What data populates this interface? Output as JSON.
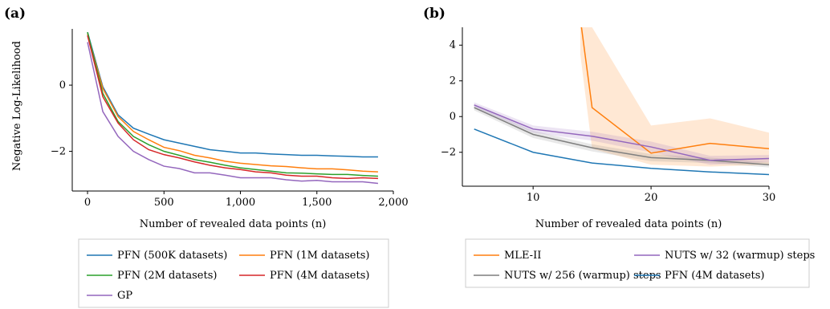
{
  "chart_data": [
    {
      "type": "line",
      "panel_label": "(a)",
      "xlabel": "Number of revealed data points (n)",
      "ylabel": "Negative Log-Likelihood",
      "xlim": [
        -100,
        2000
      ],
      "ylim": [
        -3.2,
        1.7
      ],
      "xticks": [
        0,
        500,
        1000,
        1500,
        2000
      ],
      "xtick_labels": [
        "0",
        "500",
        "1,000",
        "1,500",
        "2,000"
      ],
      "yticks": [
        0,
        -2
      ],
      "ytick_labels": [
        "0",
        "−2"
      ],
      "legend_position": "bottom",
      "series": [
        {
          "name": "PFN (500K datasets)",
          "color": "#1f77b4",
          "x": [
            0,
            100,
            200,
            300,
            400,
            500,
            600,
            700,
            800,
            900,
            1000,
            1100,
            1200,
            1300,
            1400,
            1500,
            1600,
            1700,
            1800,
            1900
          ],
          "y": [
            1.6,
            -0.05,
            -0.9,
            -1.3,
            -1.48,
            -1.65,
            -1.75,
            -1.85,
            -1.95,
            -2.0,
            -2.05,
            -2.05,
            -2.08,
            -2.1,
            -2.12,
            -2.12,
            -2.14,
            -2.15,
            -2.17,
            -2.17
          ]
        },
        {
          "name": "PFN (1M datasets)",
          "color": "#ff7f0e",
          "x": [
            0,
            100,
            200,
            300,
            400,
            500,
            600,
            700,
            800,
            900,
            1000,
            1100,
            1200,
            1300,
            1400,
            1500,
            1600,
            1700,
            1800,
            1900
          ],
          "y": [
            1.55,
            -0.1,
            -0.95,
            -1.4,
            -1.65,
            -1.88,
            -1.98,
            -2.12,
            -2.2,
            -2.3,
            -2.36,
            -2.4,
            -2.44,
            -2.46,
            -2.5,
            -2.53,
            -2.53,
            -2.56,
            -2.6,
            -2.62
          ]
        },
        {
          "name": "PFN (2M datasets)",
          "color": "#2ca02c",
          "x": [
            0,
            100,
            200,
            300,
            400,
            500,
            600,
            700,
            800,
            900,
            1000,
            1100,
            1200,
            1300,
            1400,
            1500,
            1600,
            1700,
            1800,
            1900
          ],
          "y": [
            1.6,
            -0.25,
            -1.1,
            -1.55,
            -1.8,
            -2.0,
            -2.12,
            -2.25,
            -2.33,
            -2.42,
            -2.5,
            -2.55,
            -2.6,
            -2.65,
            -2.66,
            -2.68,
            -2.7,
            -2.7,
            -2.73,
            -2.75
          ]
        },
        {
          "name": "PFN (4M datasets)",
          "color": "#d62728",
          "x": [
            0,
            100,
            200,
            300,
            400,
            500,
            600,
            700,
            800,
            900,
            1000,
            1100,
            1200,
            1300,
            1400,
            1500,
            1600,
            1700,
            1800,
            1900
          ],
          "y": [
            1.5,
            -0.35,
            -1.15,
            -1.65,
            -1.95,
            -2.1,
            -2.2,
            -2.32,
            -2.42,
            -2.5,
            -2.55,
            -2.62,
            -2.65,
            -2.72,
            -2.75,
            -2.75,
            -2.8,
            -2.82,
            -2.8,
            -2.82
          ]
        },
        {
          "name": "GP",
          "color": "#9467bd",
          "x": [
            0,
            100,
            200,
            300,
            400,
            500,
            600,
            700,
            800,
            900,
            1000,
            1100,
            1200,
            1300,
            1400,
            1500,
            1600,
            1700,
            1800,
            1900
          ],
          "y": [
            1.3,
            -0.8,
            -1.55,
            -2.0,
            -2.25,
            -2.45,
            -2.52,
            -2.65,
            -2.65,
            -2.72,
            -2.8,
            -2.8,
            -2.8,
            -2.86,
            -2.9,
            -2.88,
            -2.92,
            -2.92,
            -2.92,
            -2.97
          ]
        }
      ]
    },
    {
      "type": "line",
      "panel_label": "(b)",
      "xlabel": "Number of revealed data points (n)",
      "ylabel": "",
      "xlim": [
        4,
        30
      ],
      "ylim": [
        -3.9,
        5
      ],
      "xticks": [
        10,
        20,
        30
      ],
      "xtick_labels": [
        "10",
        "20",
        "30"
      ],
      "yticks": [
        4,
        2,
        0,
        -2
      ],
      "ytick_labels": [
        "4",
        "2",
        "0",
        "−2"
      ],
      "legend_position": "bottom",
      "series": [
        {
          "name": "MLE-II",
          "color": "#ff7f0e",
          "x": [
            5,
            10,
            14,
            15,
            20,
            25,
            30
          ],
          "y": [
            null,
            null,
            5.5,
            0.5,
            -2.05,
            -1.5,
            -1.8
          ],
          "band_upper": [
            null,
            null,
            7,
            5,
            -0.5,
            -0.1,
            -0.9
          ],
          "band_lower": [
            null,
            null,
            3.5,
            -1.8,
            -2.7,
            -2.8,
            -2.7
          ]
        },
        {
          "name": "NUTS w/ 256 (warmup) steps",
          "color": "#7f7f7f",
          "x": [
            5,
            10,
            15,
            20,
            25,
            30
          ],
          "y": [
            0.5,
            -1.0,
            -1.75,
            -2.3,
            -2.45,
            -2.7
          ],
          "band_upper": [
            0.65,
            -0.8,
            -1.55,
            -2.1,
            -2.3,
            -2.55
          ],
          "band_lower": [
            0.35,
            -1.2,
            -1.95,
            -2.5,
            -2.6,
            -2.85
          ]
        },
        {
          "name": "NUTS w/ 32 (warmup) steps",
          "color": "#9467bd",
          "x": [
            5,
            10,
            15,
            20,
            25,
            30
          ],
          "y": [
            0.65,
            -0.7,
            -1.1,
            -1.7,
            -2.45,
            -2.35
          ],
          "band_upper": [
            0.8,
            -0.5,
            -0.85,
            -1.4,
            -2.2,
            -2.15
          ],
          "band_lower": [
            0.5,
            -0.9,
            -1.35,
            -2.0,
            -2.7,
            -2.55
          ]
        },
        {
          "name": "PFN (4M datasets)",
          "color": "#1f77b4",
          "x": [
            5,
            10,
            15,
            20,
            25,
            30
          ],
          "y": [
            -0.7,
            -2.0,
            -2.6,
            -2.9,
            -3.1,
            -3.25
          ]
        }
      ]
    }
  ]
}
